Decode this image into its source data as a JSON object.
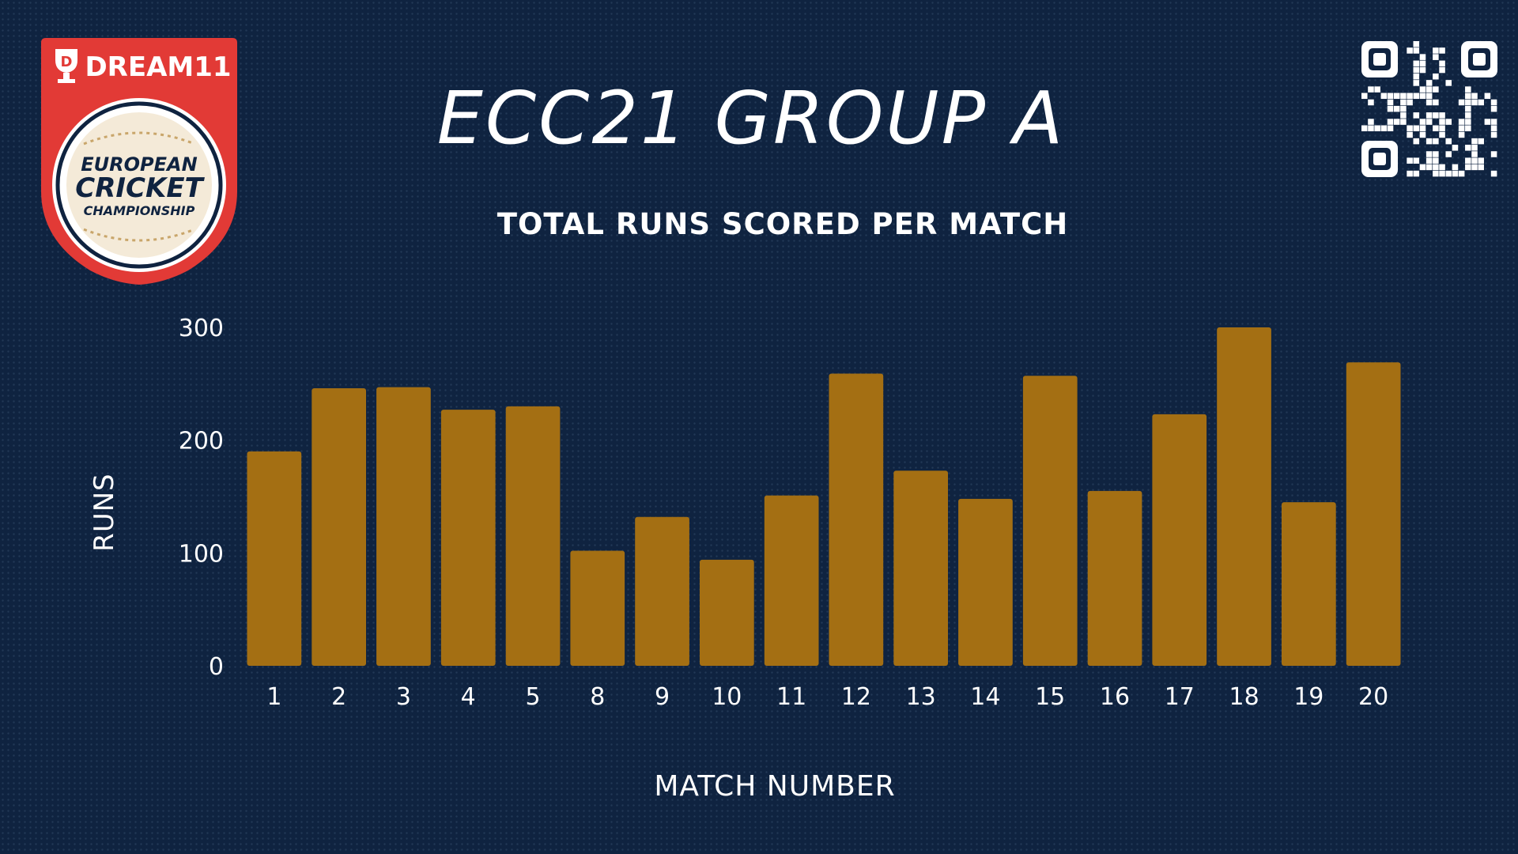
{
  "brand": {
    "sponsor": "DREAM11",
    "logo_line1": "EUROPEAN",
    "logo_line2": "CRICKET",
    "logo_line3": "CHAMPIONSHIP",
    "badge_color": "#e23a36"
  },
  "header": {
    "title": "ECC21 GROUP A"
  },
  "icons": {
    "qr": "qr-code-icon"
  },
  "colors": {
    "background": "#0f2340",
    "bar": "#a46f13",
    "text": "#ffffff"
  },
  "chart_data": {
    "type": "bar",
    "title": "TOTAL RUNS SCORED PER MATCH",
    "xlabel": "MATCH NUMBER",
    "ylabel": "RUNS",
    "categories": [
      "1",
      "2",
      "3",
      "4",
      "5",
      "8",
      "9",
      "10",
      "11",
      "12",
      "13",
      "14",
      "15",
      "16",
      "17",
      "18",
      "19",
      "20"
    ],
    "values": [
      190,
      246,
      247,
      227,
      230,
      102,
      132,
      94,
      151,
      259,
      173,
      148,
      257,
      155,
      223,
      300,
      145,
      269
    ],
    "ylim": [
      0,
      300
    ],
    "yticks": [
      0,
      100,
      200,
      300
    ],
    "grid": false,
    "legend": "none"
  }
}
